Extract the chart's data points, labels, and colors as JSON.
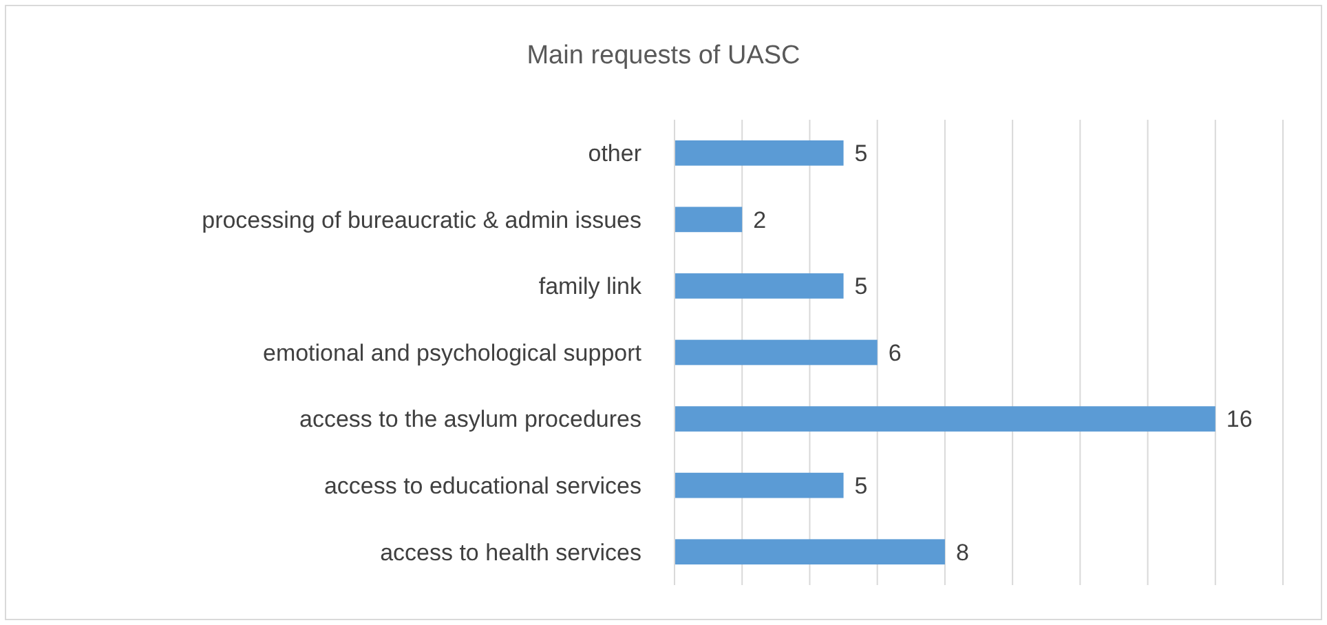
{
  "chart_data": {
    "type": "bar",
    "orientation": "horizontal",
    "title": "Main requests of UASC",
    "categories": [
      "other",
      "processing of bureaucratic & admin issues",
      "family link",
      "emotional and psychological support",
      "access to the asylum procedures",
      "access to educational services",
      "access to health services"
    ],
    "values": [
      5,
      2,
      5,
      6,
      16,
      5,
      8
    ],
    "color": "#5b9bd5",
    "data_labels": true,
    "xlim": [
      0,
      18
    ],
    "xticks": [
      {
        "value": 0,
        "label": null
      },
      {
        "value": 2,
        "label": null
      },
      {
        "value": 4,
        "label": null
      },
      {
        "value": 6,
        "label": null
      },
      {
        "value": 8,
        "label": null
      },
      {
        "value": 10,
        "label": null
      },
      {
        "value": 12,
        "label": null
      },
      {
        "value": 14,
        "label": null
      },
      {
        "value": 16,
        "label": null
      },
      {
        "value": 18,
        "label": null
      }
    ],
    "grid": "x",
    "tick_labels": "y"
  }
}
